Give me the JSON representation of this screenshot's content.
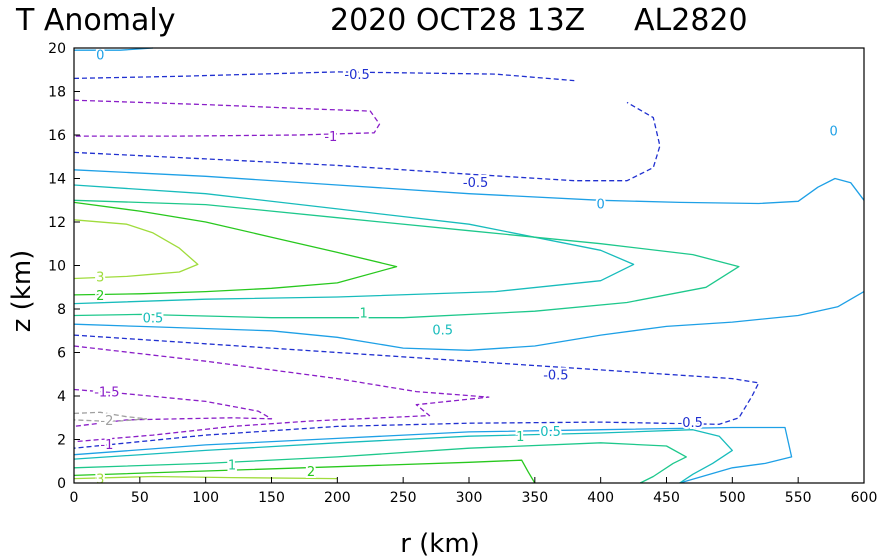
{
  "header": {
    "field": "T Anomaly",
    "datetime": "2020 OCT28 13Z",
    "storm_id": "AL2820"
  },
  "chart_data": {
    "type": "contour",
    "title": "T Anomaly",
    "xlabel": "r (km)",
    "ylabel": "z (km)",
    "xlim": [
      0,
      600
    ],
    "ylim": [
      0,
      20
    ],
    "xticks": [
      0,
      50,
      100,
      150,
      200,
      250,
      300,
      350,
      400,
      450,
      500,
      550,
      600
    ],
    "yticks": [
      0,
      2,
      4,
      6,
      8,
      10,
      12,
      14,
      16,
      18,
      20
    ],
    "contour_interval_note": "levels shown",
    "levels": [
      {
        "value": -2,
        "color": "#a0a0a0",
        "dashed": true
      },
      {
        "value": -1.5,
        "color": "#8a1ec8",
        "dashed": true
      },
      {
        "value": -1,
        "color": "#8a1ec8",
        "dashed": true
      },
      {
        "value": -0.5,
        "color": "#2030d0",
        "dashed": true
      },
      {
        "value": 0,
        "color": "#1ea0e6",
        "dashed": false
      },
      {
        "value": 0.5,
        "color": "#18bcbc",
        "dashed": false
      },
      {
        "value": 1,
        "color": "#1ec88c",
        "dashed": false
      },
      {
        "value": 2,
        "color": "#28c81e",
        "dashed": false
      },
      {
        "value": 3,
        "color": "#a0dc3c",
        "dashed": false
      }
    ],
    "contours": [
      {
        "level": 0,
        "points": [
          [
            0,
            19.9
          ],
          [
            35,
            19.9
          ],
          [
            60,
            20
          ]
        ]
      },
      {
        "level": -0.5,
        "points": [
          [
            0,
            18.6
          ],
          [
            80,
            18.7
          ],
          [
            200,
            18.9
          ],
          [
            320,
            18.8
          ],
          [
            380,
            18.5
          ]
        ]
      },
      {
        "level": -1,
        "points": [
          [
            0,
            17.6
          ],
          [
            100,
            17.4
          ],
          [
            180,
            17.2
          ],
          [
            225,
            17.1
          ],
          [
            232,
            16.5
          ],
          [
            228,
            16.1
          ],
          [
            170,
            16.0
          ],
          [
            80,
            15.95
          ],
          [
            0,
            15.95
          ]
        ]
      },
      {
        "level": -0.5,
        "points": [
          [
            0,
            15.2
          ],
          [
            100,
            14.9
          ],
          [
            200,
            14.6
          ],
          [
            300,
            14.2
          ],
          [
            380,
            13.9
          ],
          [
            420,
            13.9
          ],
          [
            440,
            14.5
          ],
          [
            445,
            15.5
          ],
          [
            440,
            16.8
          ],
          [
            420,
            17.5
          ]
        ]
      },
      {
        "level": 0,
        "points": [
          [
            0,
            14.4
          ],
          [
            100,
            14.1
          ],
          [
            200,
            13.7
          ],
          [
            300,
            13.3
          ],
          [
            400,
            13.0
          ],
          [
            460,
            12.9
          ],
          [
            520,
            12.85
          ],
          [
            550,
            12.95
          ],
          [
            565,
            13.6
          ],
          [
            578,
            14.0
          ],
          [
            590,
            13.8
          ],
          [
            600,
            13.0
          ]
        ]
      },
      {
        "level": 0.5,
        "points": [
          [
            0,
            13.7
          ],
          [
            100,
            13.3
          ],
          [
            200,
            12.6
          ],
          [
            300,
            11.9
          ],
          [
            400,
            10.7
          ],
          [
            425,
            10.05
          ],
          [
            400,
            9.3
          ],
          [
            320,
            8.8
          ],
          [
            200,
            8.55
          ],
          [
            100,
            8.45
          ],
          [
            0,
            8.25
          ]
        ]
      },
      {
        "level": 2,
        "points": [
          [
            0,
            12.9
          ],
          [
            50,
            12.5
          ],
          [
            100,
            12.0
          ],
          [
            150,
            11.3
          ],
          [
            200,
            10.6
          ],
          [
            245,
            9.95
          ],
          [
            200,
            9.2
          ],
          [
            150,
            8.95
          ],
          [
            100,
            8.8
          ],
          [
            50,
            8.7
          ],
          [
            0,
            8.65
          ]
        ]
      },
      {
        "level": 3,
        "points": [
          [
            0,
            12.1
          ],
          [
            40,
            11.9
          ],
          [
            60,
            11.5
          ],
          [
            80,
            10.8
          ],
          [
            94,
            10.05
          ],
          [
            80,
            9.7
          ],
          [
            60,
            9.6
          ],
          [
            40,
            9.5
          ],
          [
            0,
            9.4
          ]
        ]
      },
      {
        "level": 1,
        "points": [
          [
            0,
            13.0
          ],
          [
            100,
            12.8
          ],
          [
            200,
            12.2
          ],
          [
            300,
            11.6
          ],
          [
            400,
            11.0
          ],
          [
            470,
            10.5
          ],
          [
            505,
            9.95
          ],
          [
            480,
            9.0
          ],
          [
            420,
            8.3
          ],
          [
            350,
            7.9
          ],
          [
            250,
            7.6
          ],
          [
            150,
            7.6
          ],
          [
            50,
            7.75
          ],
          [
            0,
            7.7
          ]
        ]
      },
      {
        "level": 0,
        "points": [
          [
            600,
            8.8
          ],
          [
            580,
            8.1
          ],
          [
            550,
            7.7
          ],
          [
            500,
            7.4
          ],
          [
            450,
            7.2
          ],
          [
            400,
            6.8
          ],
          [
            350,
            6.3
          ],
          [
            300,
            6.1
          ],
          [
            250,
            6.2
          ],
          [
            200,
            6.7
          ],
          [
            150,
            7.0
          ],
          [
            50,
            7.2
          ],
          [
            0,
            7.3
          ]
        ]
      },
      {
        "level": -0.5,
        "points": [
          [
            0,
            6.8
          ],
          [
            100,
            6.4
          ],
          [
            200,
            6.0
          ],
          [
            300,
            5.6
          ],
          [
            400,
            5.2
          ],
          [
            450,
            5.0
          ],
          [
            500,
            4.8
          ],
          [
            520,
            4.6
          ],
          [
            515,
            4.0
          ],
          [
            505,
            3.0
          ],
          [
            490,
            2.7
          ],
          [
            400,
            2.8
          ],
          [
            300,
            2.75
          ],
          [
            200,
            2.6
          ],
          [
            100,
            2.2
          ],
          [
            0,
            1.6
          ]
        ]
      },
      {
        "level": -1,
        "points": [
          [
            0,
            6.3
          ],
          [
            100,
            5.6
          ],
          [
            200,
            4.8
          ],
          [
            260,
            4.2
          ],
          [
            315,
            3.95
          ],
          [
            260,
            3.6
          ],
          [
            270,
            3.1
          ],
          [
            180,
            2.85
          ],
          [
            120,
            2.6
          ],
          [
            60,
            2.2
          ],
          [
            0,
            1.9
          ]
        ]
      },
      {
        "level": -1.5,
        "points": [
          [
            0,
            4.3
          ],
          [
            40,
            4.1
          ],
          [
            100,
            3.75
          ],
          [
            140,
            3.3
          ],
          [
            150,
            2.95
          ],
          [
            120,
            3.0
          ],
          [
            80,
            2.95
          ],
          [
            40,
            2.9
          ],
          [
            0,
            2.6
          ]
        ]
      },
      {
        "level": -2,
        "points": [
          [
            0,
            3.2
          ],
          [
            20,
            3.25
          ],
          [
            40,
            3.05
          ],
          [
            55,
            2.95
          ],
          [
            35,
            2.85
          ],
          [
            20,
            2.85
          ],
          [
            0,
            2.9
          ]
        ]
      },
      {
        "level": 0,
        "points": [
          [
            0,
            1.3
          ],
          [
            100,
            1.75
          ],
          [
            200,
            2.05
          ],
          [
            300,
            2.35
          ],
          [
            400,
            2.45
          ],
          [
            500,
            2.55
          ],
          [
            540,
            2.55
          ],
          [
            545,
            1.2
          ],
          [
            525,
            0.9
          ],
          [
            500,
            0.7
          ],
          [
            460,
            0
          ]
        ]
      },
      {
        "level": 0.5,
        "points": [
          [
            0,
            1.1
          ],
          [
            100,
            1.5
          ],
          [
            200,
            1.85
          ],
          [
            300,
            2.15
          ],
          [
            400,
            2.3
          ],
          [
            470,
            2.45
          ],
          [
            490,
            2.15
          ],
          [
            500,
            1.5
          ],
          [
            485,
            0.9
          ],
          [
            470,
            0.4
          ],
          [
            460,
            0
          ]
        ]
      },
      {
        "level": 1,
        "points": [
          [
            0,
            0.7
          ],
          [
            100,
            0.9
          ],
          [
            200,
            1.2
          ],
          [
            300,
            1.6
          ],
          [
            400,
            1.85
          ],
          [
            450,
            1.7
          ],
          [
            465,
            1.2
          ],
          [
            455,
            0.9
          ],
          [
            440,
            0.3
          ],
          [
            430,
            0
          ]
        ]
      },
      {
        "level": 2,
        "points": [
          [
            0,
            0.35
          ],
          [
            100,
            0.55
          ],
          [
            200,
            0.75
          ],
          [
            300,
            0.95
          ],
          [
            340,
            1.05
          ],
          [
            345,
            0.5
          ],
          [
            350,
            0
          ]
        ]
      },
      {
        "level": 3,
        "points": [
          [
            0,
            0.2
          ],
          [
            60,
            0.3
          ],
          [
            120,
            0.25
          ],
          [
            200,
            0.2
          ]
        ]
      }
    ],
    "contour_labels": [
      {
        "text": "0",
        "x": 20,
        "y": 19.7,
        "level": 0
      },
      {
        "text": "-0.5",
        "x": 215,
        "y": 18.8,
        "level": -0.5
      },
      {
        "text": "-1",
        "x": 195,
        "y": 15.95,
        "level": -1
      },
      {
        "text": "0",
        "x": 577,
        "y": 16.2,
        "level": 0
      },
      {
        "text": "-0.5",
        "x": 305,
        "y": 13.85,
        "level": -0.5
      },
      {
        "text": "0",
        "x": 400,
        "y": 12.85,
        "level": 0
      },
      {
        "text": "3",
        "x": 20,
        "y": 9.5,
        "level": 3
      },
      {
        "text": "2",
        "x": 20,
        "y": 8.65,
        "level": 2
      },
      {
        "text": "1",
        "x": 220,
        "y": 7.85,
        "level": 1
      },
      {
        "text": "0.5",
        "x": 60,
        "y": 7.6,
        "level": 0.5
      },
      {
        "text": "0.5",
        "x": 280,
        "y": 7.05,
        "level": 0.5
      },
      {
        "text": "-0.5",
        "x": 366,
        "y": 5.0,
        "level": -0.5
      },
      {
        "text": "-1.5",
        "x": 25,
        "y": 4.2,
        "level": -1.5
      },
      {
        "text": "-0.5",
        "x": 468,
        "y": 2.8,
        "level": -0.5
      },
      {
        "text": "-2",
        "x": 25,
        "y": 2.9,
        "level": -2
      },
      {
        "text": "0.5",
        "x": 362,
        "y": 2.4,
        "level": 0.5
      },
      {
        "text": "1",
        "x": 339,
        "y": 2.15,
        "level": 1
      },
      {
        "text": "-1",
        "x": 25,
        "y": 1.8,
        "level": -1
      },
      {
        "text": "1",
        "x": 120,
        "y": 0.85,
        "level": 1
      },
      {
        "text": "2",
        "x": 180,
        "y": 0.55,
        "level": 2
      },
      {
        "text": "3",
        "x": 20,
        "y": 0.2,
        "level": 3
      }
    ],
    "grid": false
  }
}
